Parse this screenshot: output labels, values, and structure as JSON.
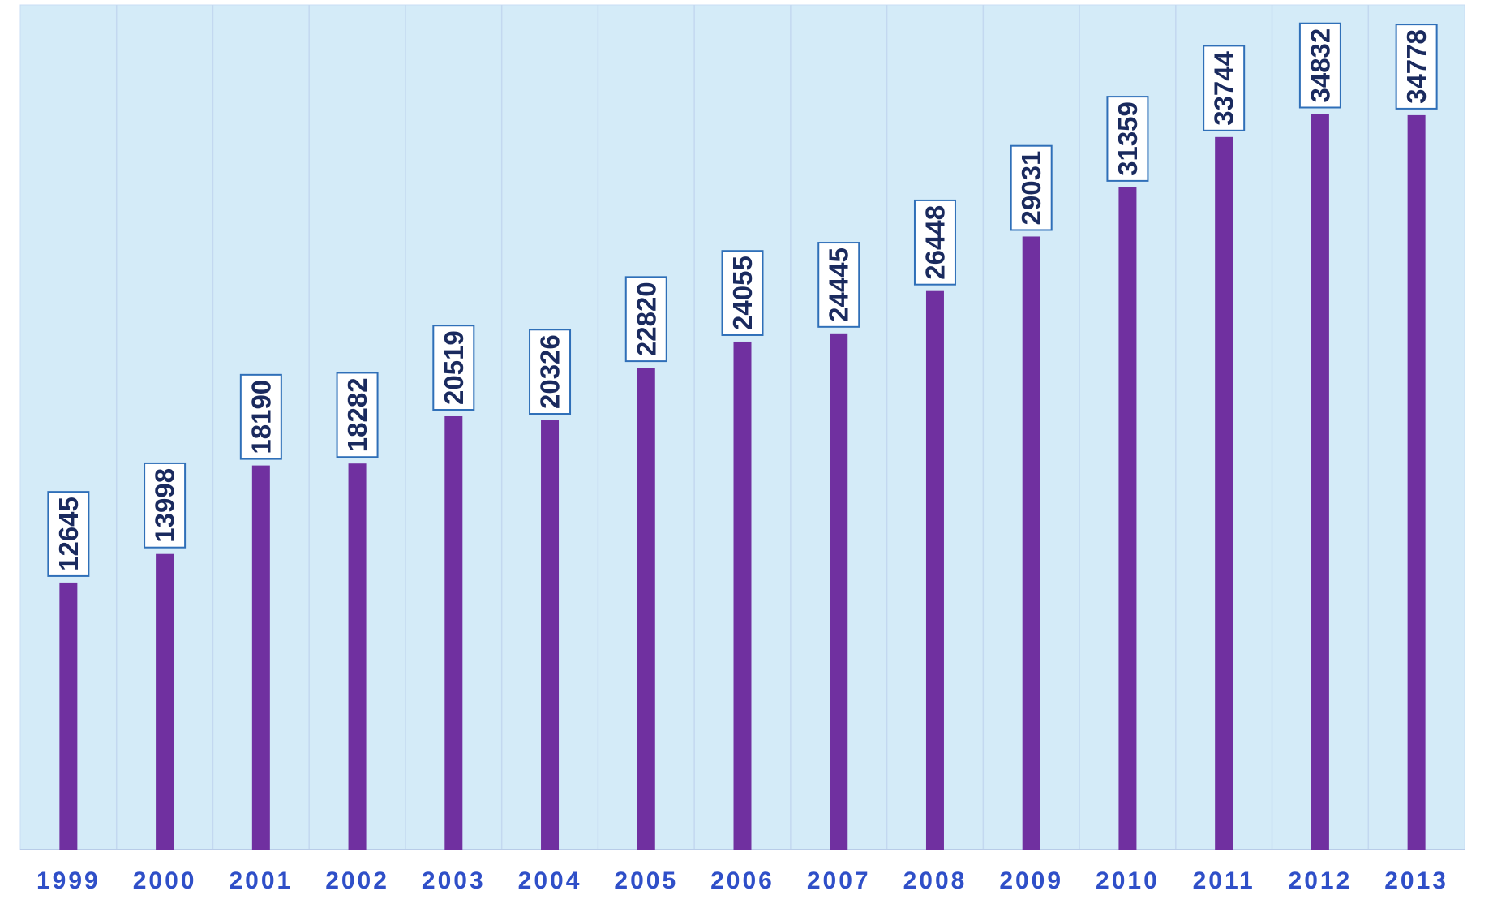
{
  "chart_data": {
    "type": "bar",
    "categories": [
      "1999",
      "2000",
      "2001",
      "2002",
      "2003",
      "2004",
      "2005",
      "2006",
      "2007",
      "2008",
      "2009",
      "2010",
      "2011",
      "2012",
      "2013"
    ],
    "values": [
      12645,
      13998,
      18190,
      18282,
      20519,
      20326,
      22820,
      24055,
      24445,
      26448,
      29031,
      31359,
      33744,
      34832,
      34778
    ],
    "color": "#7030a0",
    "ylim": [
      0,
      40000
    ],
    "grid": true
  }
}
